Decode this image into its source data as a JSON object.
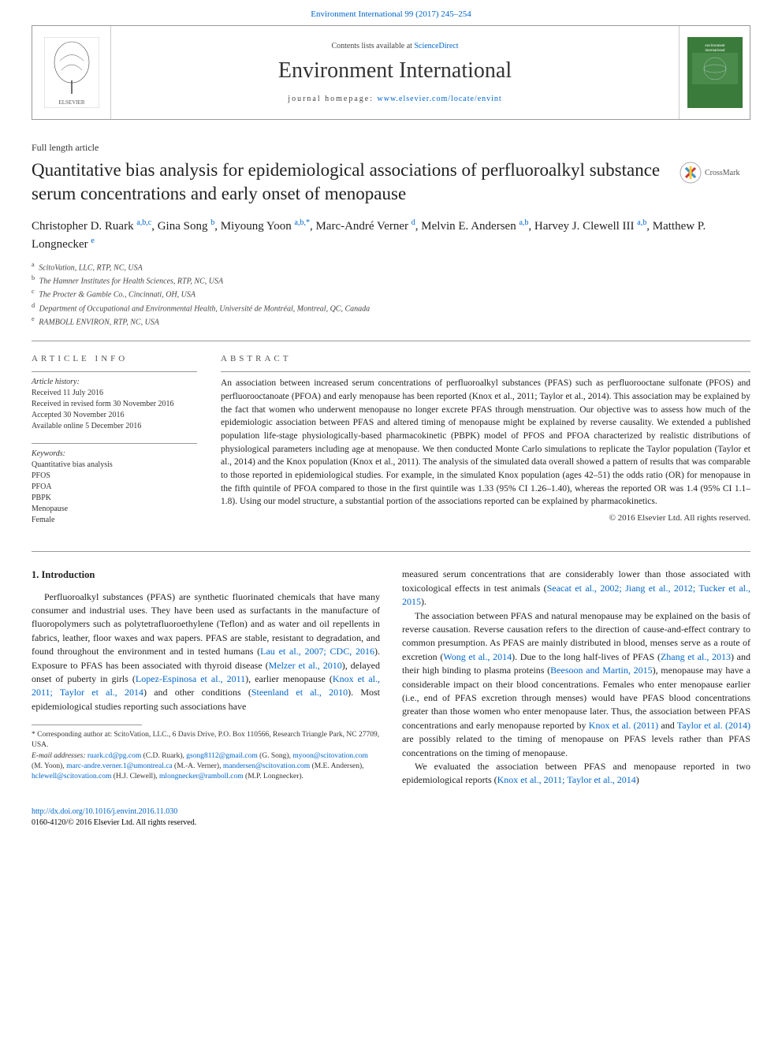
{
  "top_link": {
    "journal": "Environment International",
    "citation": "99 (2017) 245–254"
  },
  "header": {
    "contents_prefix": "Contents lists available at ",
    "contents_link": "ScienceDirect",
    "journal_title": "Environment International",
    "homepage_prefix": "journal homepage: ",
    "homepage_url": "www.elsevier.com/locate/envint"
  },
  "article_type": "Full length article",
  "title": "Quantitative bias analysis for epidemiological associations of perfluoroalkyl substance serum concentrations and early onset of menopause",
  "crossmark_label": "CrossMark",
  "authors_html": "Christopher D. Ruark <sup><a>a,b,c</a></sup>, Gina Song <sup><a>b</a></sup>, Miyoung Yoon <sup><a>a,b,</a></sup><sup>*</sup>, Marc-André Verner <sup><a>d</a></sup>, Melvin E. Andersen <sup><a>a,b</a></sup>, Harvey J. Clewell III <sup><a>a,b</a></sup>, Matthew P. Longnecker <sup><a>e</a></sup>",
  "affiliations": [
    {
      "sup": "a",
      "text": "ScitoVation, LLC, RTP, NC, USA"
    },
    {
      "sup": "b",
      "text": "The Hamner Institutes for Health Sciences, RTP, NC, USA"
    },
    {
      "sup": "c",
      "text": "The Procter & Gamble Co., Cincinnati, OH, USA"
    },
    {
      "sup": "d",
      "text": "Department of Occupational and Environmental Health, Université de Montréal, Montreal, QC, Canada"
    },
    {
      "sup": "e",
      "text": "RAMBOLL ENVIRON, RTP, NC, USA"
    }
  ],
  "info": {
    "heading": "article info",
    "history_label": "Article history:",
    "history": [
      "Received 11 July 2016",
      "Received in revised form 30 November 2016",
      "Accepted 30 November 2016",
      "Available online 5 December 2016"
    ],
    "keywords_label": "Keywords:",
    "keywords": [
      "Quantitative bias analysis",
      "PFOS",
      "PFOA",
      "PBPK",
      "Menopause",
      "Female"
    ]
  },
  "abstract": {
    "heading": "abstract",
    "text": "An association between increased serum concentrations of perfluoroalkyl substances (PFAS) such as perfluorooctane sulfonate (PFOS) and perfluorooctanoate (PFOA) and early menopause has been reported (Knox et al., 2011; Taylor et al., 2014). This association may be explained by the fact that women who underwent menopause no longer excrete PFAS through menstruation. Our objective was to assess how much of the epidemiologic association between PFAS and altered timing of menopause might be explained by reverse causality. We extended a published population life-stage physiologically-based pharmacokinetic (PBPK) model of PFOS and PFOA characterized by realistic distributions of physiological parameters including age at menopause. We then conducted Monte Carlo simulations to replicate the Taylor population (Taylor et al., 2014) and the Knox population (Knox et al., 2011). The analysis of the simulated data overall showed a pattern of results that was comparable to those reported in epidemiological studies. For example, in the simulated Knox population (ages 42–51) the odds ratio (OR) for menopause in the fifth quintile of PFOA compared to those in the first quintile was 1.33 (95% CI 1.26–1.40), whereas the reported OR was 1.4 (95% CI 1.1–1.8). Using our model structure, a substantial portion of the associations reported can be explained by pharmacokinetics.",
    "copyright": "© 2016 Elsevier Ltd. All rights reserved."
  },
  "body": {
    "section_heading": "1. Introduction",
    "p1_parts": [
      "Perfluoroalkyl substances (PFAS) are synthetic fluorinated chemicals that have many consumer and industrial uses. They have been used as surfactants in the manufacture of fluoropolymers such as polytetrafluoroethylene (Teflon) and as water and oil repellents in fabrics, leather, floor waxes and wax papers. PFAS are stable, resistant to degradation, and found throughout the environment and in tested humans (",
      "Lau et al., 2007; CDC, 2016",
      "). Exposure to PFAS has been associated with thyroid disease (",
      "Melzer et al., 2010",
      "), delayed onset of puberty in girls (",
      "Lopez-Espinosa et al., 2011",
      "), earlier menopause (",
      "Knox et al., 2011; Taylor et al., 2014",
      ") and other conditions (",
      "Steenland et al., 2010",
      "). Most epidemiological studies reporting such associations have measured serum concentrations that are considerably lower than those associated with toxicological effects in test animals (",
      "Seacat et al., 2002; Jiang et al., 2012; Tucker et al., 2015",
      ")."
    ],
    "p2_parts": [
      "The association between PFAS and natural menopause may be explained on the basis of reverse causation. Reverse causation refers to the direction of cause-and-effect contrary to common presumption. As PFAS are mainly distributed in blood, menses serve as a route of excretion (",
      "Wong et al., 2014",
      "). Due to the long half-lives of PFAS (",
      "Zhang et al., 2013",
      ") and their high binding to plasma proteins (",
      "Beesoon and Martin, 2015",
      "), menopause may have a considerable impact on their blood concentrations. Females who enter menopause earlier (i.e., end of PFAS excretion through menses) would have PFAS blood concentrations greater than those women who enter menopause later. Thus, the association between PFAS concentrations and early menopause reported by ",
      "Knox et al. (2011)",
      " and ",
      "Taylor et al. (2014)",
      " are possibly related to the timing of menopause on PFAS levels rather than PFAS concentrations on the timing of menopause."
    ],
    "p3_parts": [
      "We evaluated the association between PFAS and menopause reported in two epidemiological reports (",
      "Knox et al., 2011; Taylor et al., 2014",
      ")"
    ]
  },
  "footnotes": {
    "corr": "* Corresponding author at: ScitoVation, LLC., 6 Davis Drive, P.O. Box 110566, Research Triangle Park, NC 27709, USA.",
    "email_label": "E-mail addresses: ",
    "emails": [
      {
        "addr": "ruark.cd@pg.com",
        "who": "(C.D. Ruark)"
      },
      {
        "addr": "gsong8112@gmail.com",
        "who": "(G. Song)"
      },
      {
        "addr": "myoon@scitovation.com",
        "who": "(M. Yoon)"
      },
      {
        "addr": "marc-andre.verner.1@umontreal.ca",
        "who": "(M.-A. Verner)"
      },
      {
        "addr": "mandersen@scitovation.com",
        "who": "(M.E. Andersen)"
      },
      {
        "addr": "hclewell@scitovation.com",
        "who": "(H.J. Clewell)"
      },
      {
        "addr": "mlongnecker@ramboll.com",
        "who": "(M.P. Longnecker)"
      }
    ]
  },
  "footer": {
    "doi": "http://dx.doi.org/10.1016/j.envint.2016.11.030",
    "issn_line": "0160-4120/© 2016 Elsevier Ltd. All rights reserved."
  },
  "colors": {
    "link": "#0066cc",
    "text": "#222222",
    "rule": "#999999",
    "elsevier_orange": "#ff6600",
    "cover_green": "#3a7a3a"
  }
}
